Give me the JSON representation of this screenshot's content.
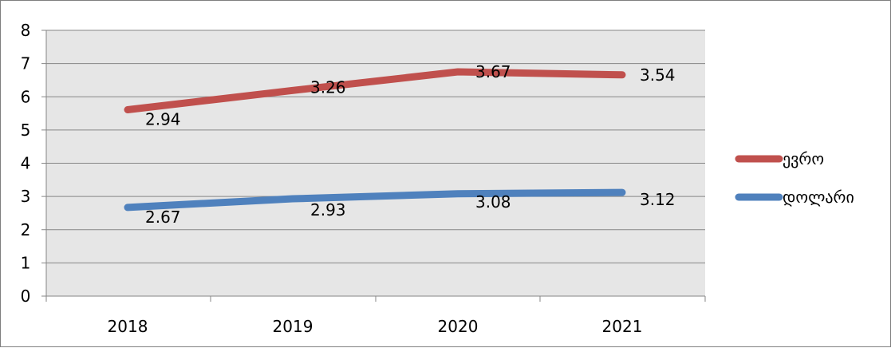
{
  "chart_data": {
    "type": "line",
    "title": "",
    "xlabel": "",
    "ylabel": "",
    "categories": [
      "2018",
      "2019",
      "2020",
      "2021"
    ],
    "ylim": [
      0,
      8
    ],
    "yticks": [
      "0",
      "1",
      "2",
      "3",
      "4",
      "5",
      "6",
      "7",
      "8"
    ],
    "grid": true,
    "legend_position": "right",
    "plot_background": "#e6e6e6",
    "series": [
      {
        "name": "ევრო",
        "color": "#c0504d",
        "values": [
          5.61,
          6.19,
          6.75,
          6.66
        ],
        "data_labels": [
          "2.94",
          "3.26",
          "3.67",
          "3.54"
        ]
      },
      {
        "name": "დოლარი",
        "color": "#4f81bd",
        "values": [
          2.67,
          2.93,
          3.08,
          3.12
        ],
        "data_labels": [
          "2.67",
          "2.93",
          "3.08",
          "3.12"
        ]
      }
    ]
  }
}
